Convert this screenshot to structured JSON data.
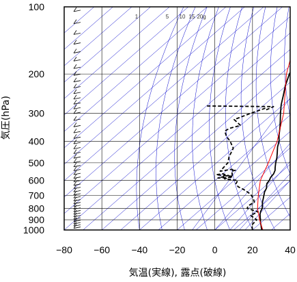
{
  "chart_data": {
    "type": "line",
    "chart_kind": "skew-T log-P thermodynamic diagram",
    "xlabel": "気温(実線), 露点(破線)",
    "ylabel": "気圧(hPa)",
    "x_axis": {
      "range": [
        -80,
        40
      ],
      "ticks": [
        -80,
        -60,
        -40,
        -20,
        0,
        20,
        40
      ],
      "unit": "°C",
      "grid": true
    },
    "y_axis": {
      "scale": "log",
      "inverted": true,
      "range": [
        1000,
        100
      ],
      "ticks": [
        100,
        200,
        300,
        400,
        500,
        600,
        700,
        800,
        900,
        1000
      ],
      "tick_labels": [
        "100",
        "200",
        "300",
        "400",
        "500",
        "600",
        "700",
        "800",
        "900",
        "1000"
      ],
      "grid": true
    },
    "mixing_ratio_labels": [
      "1",
      "5",
      "10",
      "15",
      "20g"
    ],
    "colors": {
      "temperature": "#000000",
      "dewpoint": "#000000",
      "parcel": "#ff0000",
      "guides": "#0000cc",
      "grid": "#000000"
    },
    "series": [
      {
        "role": "temperature",
        "style": "solid",
        "points": [
          [
            1000,
            25.0
          ],
          [
            980,
            23.5
          ],
          [
            950,
            21.5
          ],
          [
            925,
            19.6
          ],
          [
            900,
            18.0
          ],
          [
            875,
            16.2
          ],
          [
            850,
            14.4
          ],
          [
            825,
            13.0
          ],
          [
            800,
            12.0
          ],
          [
            775,
            10.2
          ],
          [
            750,
            8.3
          ],
          [
            725,
            6.7
          ],
          [
            700,
            5.0
          ],
          [
            675,
            3.2
          ],
          [
            650,
            2.0
          ],
          [
            620,
            -0.6
          ],
          [
            600,
            -1.3
          ],
          [
            580,
            -2.5
          ],
          [
            560,
            -3.0
          ],
          [
            540,
            -4.4
          ],
          [
            525,
            -6.0
          ],
          [
            500,
            -8.6
          ],
          [
            475,
            -11.0
          ],
          [
            450,
            -14.0
          ],
          [
            425,
            -17.2
          ],
          [
            400,
            -20.0
          ],
          [
            375,
            -23.8
          ],
          [
            350,
            -27.4
          ],
          [
            325,
            -31.6
          ],
          [
            300,
            -36.2
          ],
          [
            275,
            -41.0
          ],
          [
            250,
            -45.5
          ],
          [
            225,
            -50.6
          ],
          [
            200,
            -55.4
          ],
          [
            180,
            -58.6
          ],
          [
            160,
            -61.4
          ],
          [
            150,
            -60.5
          ],
          [
            140,
            -61.5
          ],
          [
            130,
            -61.0
          ],
          [
            125,
            -62.0
          ],
          [
            120,
            -61.2
          ],
          [
            115,
            -59.8
          ],
          [
            110,
            -60.2
          ],
          [
            105,
            -60.5
          ],
          [
            100,
            -60.8
          ]
        ]
      },
      {
        "role": "dewpoint",
        "style": "dashed",
        "points": [
          [
            1000,
            20.0
          ],
          [
            950,
            16.6
          ],
          [
            900,
            16.0
          ],
          [
            860,
            10.0
          ],
          [
            830,
            12.0
          ],
          [
            800,
            4.0
          ],
          [
            780,
            3.0
          ],
          [
            750,
            4.0
          ],
          [
            720,
            1.0
          ],
          [
            690,
            -3.0
          ],
          [
            660,
            -9.0
          ],
          [
            640,
            -14.0
          ],
          [
            620,
            -17.0
          ],
          [
            600,
            -18.0
          ],
          [
            590,
            -26.0
          ],
          [
            575,
            -23.0
          ],
          [
            565,
            -33.0
          ],
          [
            560,
            -30.0
          ],
          [
            570,
            -26.0
          ],
          [
            585,
            -30.0
          ],
          [
            580,
            -23.0
          ],
          [
            560,
            -25.0
          ],
          [
            545,
            -27.0
          ],
          [
            540,
            -25.5
          ],
          [
            535,
            -28.0
          ],
          [
            545,
            -33.0
          ],
          [
            500,
            -34.0
          ],
          [
            470,
            -37.0
          ],
          [
            430,
            -40.0
          ],
          [
            400,
            -46.0
          ],
          [
            380,
            -51.0
          ],
          [
            360,
            -55.0
          ],
          [
            350,
            -54.0
          ],
          [
            340,
            -50.0
          ],
          [
            320,
            -57.0
          ],
          [
            300,
            -52.0
          ],
          [
            285,
            -47.5
          ],
          [
            290,
            -46.0
          ],
          [
            280,
            -44.0
          ],
          [
            278,
            -80.0
          ]
        ]
      },
      {
        "role": "parcel",
        "style": "solid",
        "points": [
          [
            1000,
            25.5
          ],
          [
            900,
            17.5
          ],
          [
            800,
            9.5
          ],
          [
            700,
            2.0
          ],
          [
            600,
            -6.0
          ],
          [
            500,
            -12.5
          ],
          [
            400,
            -21.0
          ],
          [
            300,
            -34.5
          ],
          [
            200,
            -57.0
          ],
          [
            150,
            -70.0
          ],
          [
            140,
            -75.0
          ]
        ]
      }
    ]
  }
}
